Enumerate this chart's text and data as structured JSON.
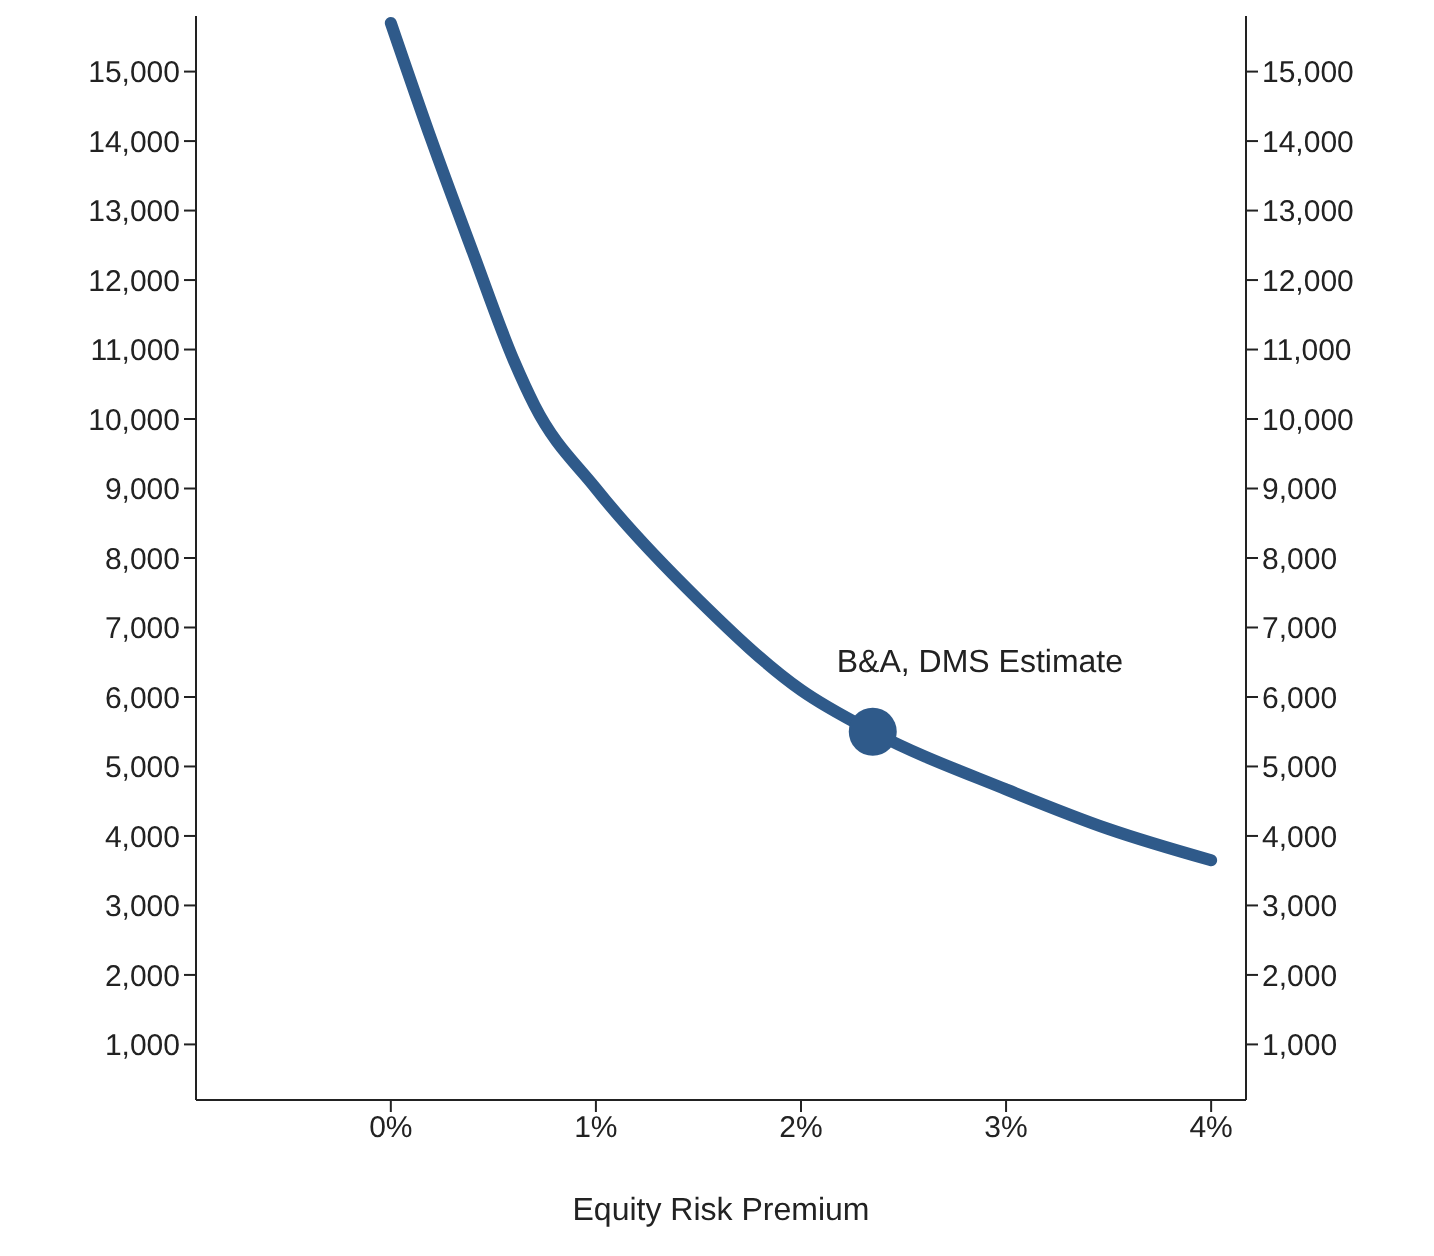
{
  "chart_data": {
    "type": "line",
    "xlabel": "Equity Risk Premium",
    "x": [
      0,
      0.2,
      0.4,
      0.6,
      0.7,
      1,
      1.5,
      2,
      2.35,
      3,
      3.5,
      4
    ],
    "series": [
      {
        "color": "#2f5a8a",
        "values": [
          15700,
          14000,
          12400,
          10840,
          10200,
          9000,
          7400,
          6100,
          5500,
          4670,
          4100,
          3650
        ]
      },
      {
        "type": "scatter",
        "color": "#2f5a8a",
        "x": [
          2.35
        ],
        "values": [
          5500
        ]
      }
    ],
    "annotations": [
      {
        "text": "B&A, DMS Estimate",
        "x": 2.35,
        "y": 5500
      }
    ],
    "xlim": [
      -0.95,
      4.17
    ],
    "xticks": [
      {
        "value": 0,
        "label": "0%"
      },
      {
        "value": 1,
        "label": "1%"
      },
      {
        "value": 2,
        "label": "2%"
      },
      {
        "value": 3,
        "label": "3%"
      },
      {
        "value": 4,
        "label": "4%"
      }
    ],
    "ylim": [
      200,
      15800
    ],
    "yticks": [
      {
        "value": 1000,
        "label": "1,000"
      },
      {
        "value": 2000,
        "label": "2,000"
      },
      {
        "value": 3000,
        "label": "3,000"
      },
      {
        "value": 4000,
        "label": "4,000"
      },
      {
        "value": 5000,
        "label": "5,000"
      },
      {
        "value": 6000,
        "label": "6,000"
      },
      {
        "value": 7000,
        "label": "7,000"
      },
      {
        "value": 8000,
        "label": "8,000"
      },
      {
        "value": 9000,
        "label": "9,000"
      },
      {
        "value": 10000,
        "label": "10,000"
      },
      {
        "value": 11000,
        "label": "11,000"
      },
      {
        "value": 12000,
        "label": "12,000"
      },
      {
        "value": 13000,
        "label": "13,000"
      },
      {
        "value": 14000,
        "label": "14,000"
      },
      {
        "value": 15000,
        "label": "15,000"
      }
    ],
    "y2lim": [
      200,
      15800
    ],
    "y2ticks": [
      {
        "value": 1000,
        "label": "1,000"
      },
      {
        "value": 2000,
        "label": "2,000"
      },
      {
        "value": 3000,
        "label": "3,000"
      },
      {
        "value": 4000,
        "label": "4,000"
      },
      {
        "value": 5000,
        "label": "5,000"
      },
      {
        "value": 6000,
        "label": "6,000"
      },
      {
        "value": 7000,
        "label": "7,000"
      },
      {
        "value": 8000,
        "label": "8,000"
      },
      {
        "value": 9000,
        "label": "9,000"
      },
      {
        "value": 10000,
        "label": "10,000"
      },
      {
        "value": 11000,
        "label": "11,000"
      },
      {
        "value": 12000,
        "label": "12,000"
      },
      {
        "value": 13000,
        "label": "13,000"
      },
      {
        "value": 14000,
        "label": "14,000"
      },
      {
        "value": 15000,
        "label": "15,000"
      }
    ],
    "grid": false,
    "legend": false
  }
}
